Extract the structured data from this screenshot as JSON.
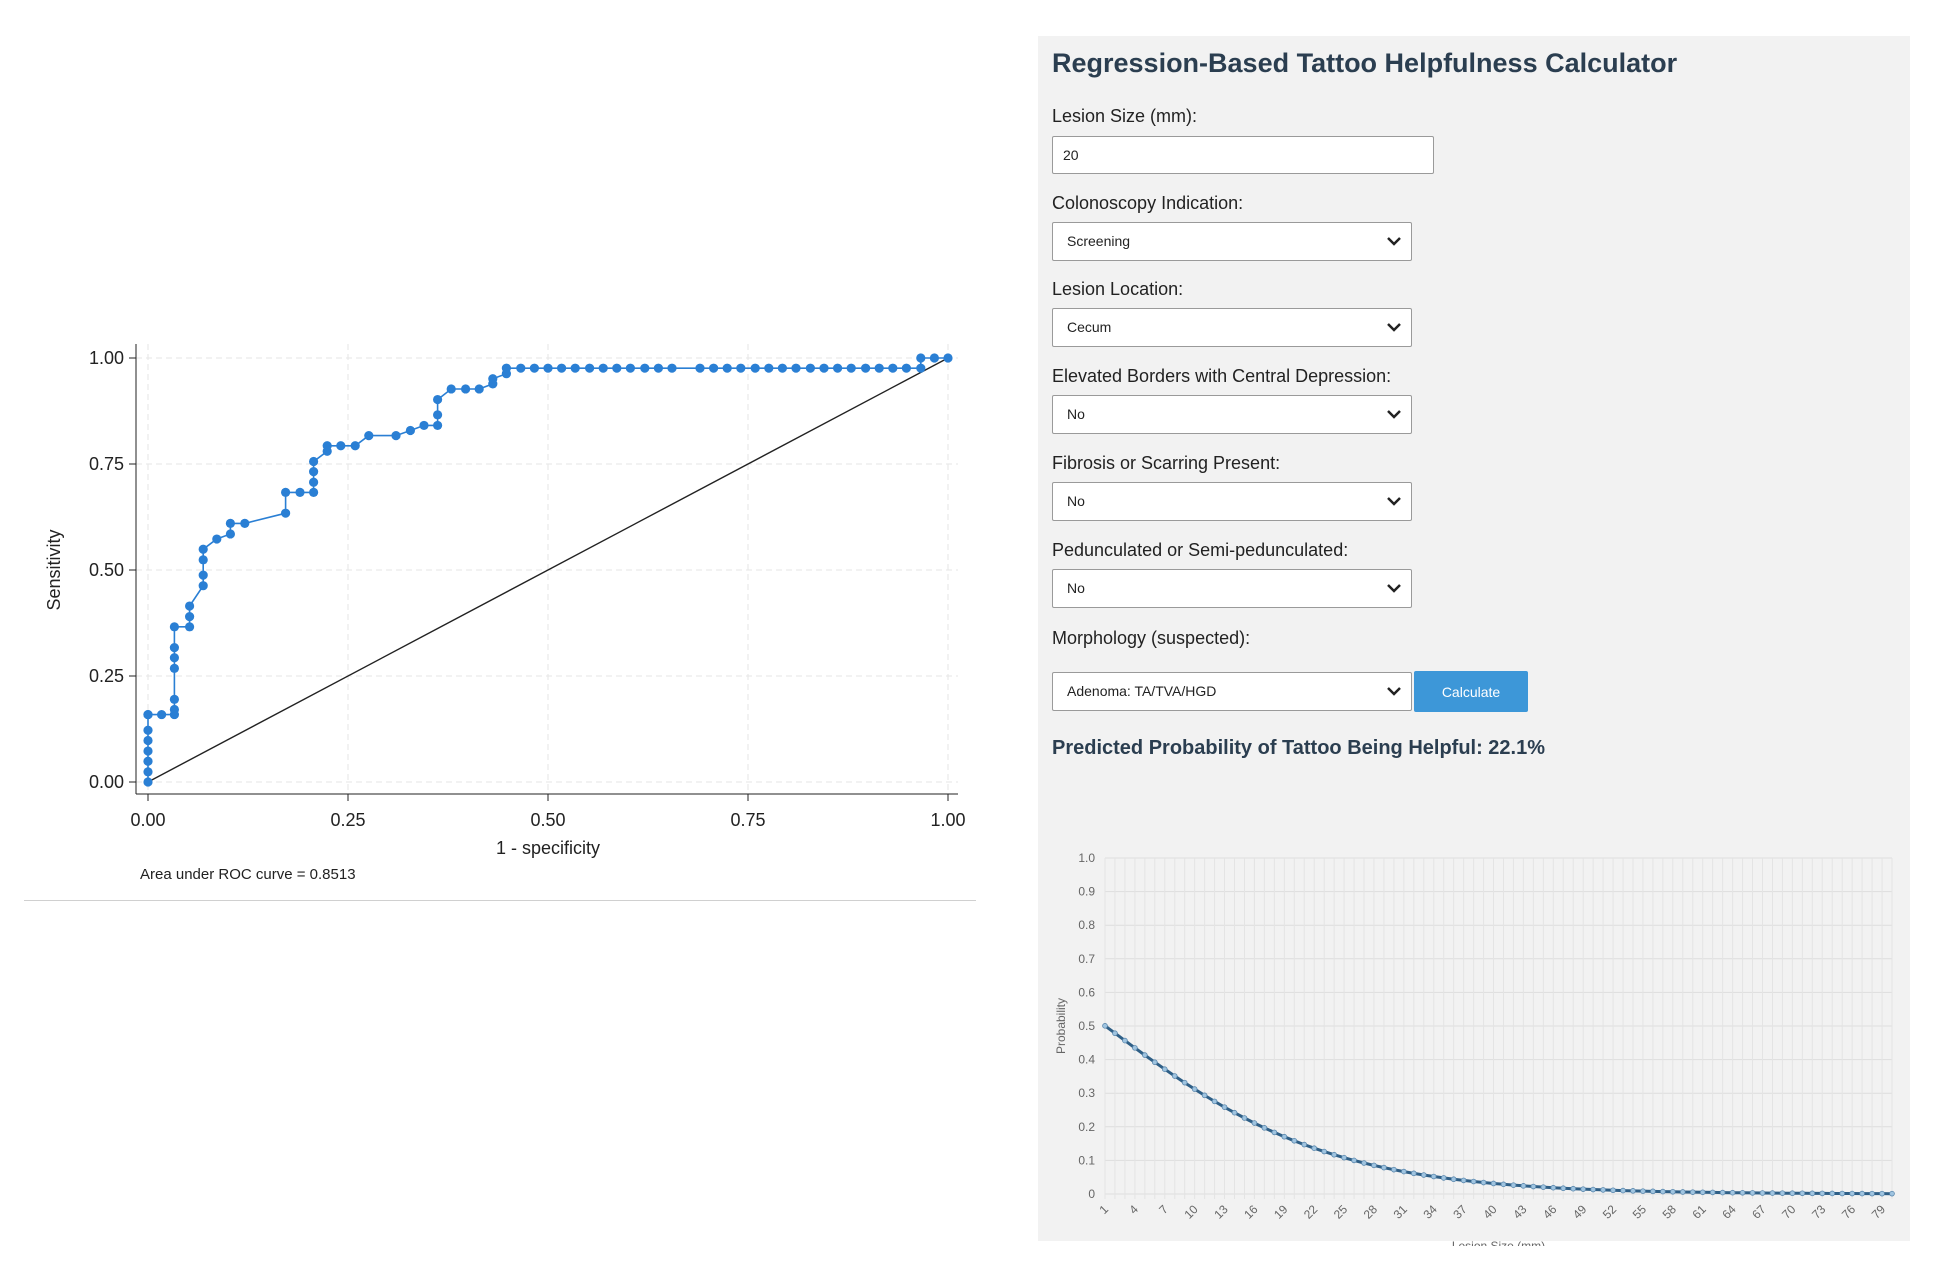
{
  "roc": {
    "note": "Area under ROC curve = 0.8513",
    "colors": {
      "curve": "#2a7fd4",
      "reference": "#222222",
      "grid": "#e6e6e6"
    }
  },
  "calculator": {
    "title": "Regression-Based Tattoo Helpfulness Calculator",
    "fields": [
      {
        "label": "Lesion Size (mm):",
        "type": "text",
        "value": "20"
      },
      {
        "label": "Colonoscopy Indication:",
        "type": "select",
        "value": "Screening"
      },
      {
        "label": "Lesion Location:",
        "type": "select",
        "value": "Cecum"
      },
      {
        "label": "Elevated Borders with Central Depression:",
        "type": "select",
        "value": "No"
      },
      {
        "label": "Fibrosis or Scarring Present:",
        "type": "select",
        "value": "No"
      },
      {
        "label": "Pedunculated or Semi-pedunculated:",
        "type": "select",
        "value": "No"
      },
      {
        "label": "Morphology (suspected):",
        "type": "select",
        "value": "Adenoma: TA/TVA/HGD"
      }
    ],
    "calculate_label": "Calculate",
    "result_label": "Predicted Probability of Tattoo Being Helpful: 22.1%",
    "colors": {
      "button": "#3d97d8",
      "title": "#2b3e50",
      "panel": "#f2f2f2"
    }
  },
  "chart_data": [
    {
      "type": "line",
      "xlabel": "1 - specificity",
      "ylabel": "Sensitivity",
      "xlim": [
        0,
        1
      ],
      "ylim": [
        0,
        1
      ],
      "x_ticks": [
        "0.00",
        "0.25",
        "0.50",
        "0.75",
        "1.00"
      ],
      "y_ticks": [
        "0.00",
        "0.25",
        "0.50",
        "0.75",
        "1.00"
      ],
      "grid": true,
      "series": [
        {
          "x": [
            0,
            0,
            0,
            0,
            0,
            0,
            0,
            0,
            0.017,
            0.033,
            0.033,
            0.033,
            0.033,
            0.033,
            0.033,
            0.033,
            0.052,
            0.052,
            0.052,
            0.069,
            0.069,
            0.069,
            0.069,
            0.086,
            0.103,
            0.103,
            0.121,
            0.172,
            0.172,
            0.19,
            0.207,
            0.207,
            0.207,
            0.207,
            0.224,
            0.224,
            0.241,
            0.259,
            0.276,
            0.31,
            0.328,
            0.345,
            0.362,
            0.362,
            0.362,
            0.379,
            0.397,
            0.414,
            0.431,
            0.431,
            0.448,
            0.448,
            0.466,
            0.483,
            0.5,
            0.517,
            0.534,
            0.552,
            0.569,
            0.586,
            0.603,
            0.621,
            0.638,
            0.655,
            0.69,
            0.707,
            0.724,
            0.741,
            0.759,
            0.776,
            0.793,
            0.81,
            0.828,
            0.845,
            0.862,
            0.879,
            0.897,
            0.914,
            0.931,
            0.948,
            0.966,
            0.966,
            0.983,
            1
          ],
          "y": [
            0,
            0.024,
            0.049,
            0.073,
            0.098,
            0.122,
            0.159,
            0.159,
            0.159,
            0.159,
            0.171,
            0.195,
            0.268,
            0.293,
            0.317,
            0.366,
            0.366,
            0.39,
            0.415,
            0.463,
            0.488,
            0.524,
            0.549,
            0.573,
            0.585,
            0.61,
            0.61,
            0.634,
            0.683,
            0.683,
            0.683,
            0.707,
            0.732,
            0.756,
            0.78,
            0.793,
            0.793,
            0.793,
            0.817,
            0.817,
            0.829,
            0.841,
            0.841,
            0.866,
            0.902,
            0.927,
            0.927,
            0.927,
            0.939,
            0.951,
            0.963,
            0.976,
            0.976,
            0.976,
            0.976,
            0.976,
            0.976,
            0.976,
            0.976,
            0.976,
            0.976,
            0.976,
            0.976,
            0.976,
            0.976,
            0.976,
            0.976,
            0.976,
            0.976,
            0.976,
            0.976,
            0.976,
            0.976,
            0.976,
            0.976,
            0.976,
            0.976,
            0.976,
            0.976,
            0.976,
            0.976,
            1,
            1,
            1
          ]
        }
      ],
      "reference_line": {
        "x": [
          0,
          1
        ],
        "y": [
          0,
          1
        ]
      }
    },
    {
      "type": "line",
      "xlabel": "Lesion Size (mm)",
      "ylabel": "Probability",
      "xlim": [
        1,
        80
      ],
      "ylim": [
        0,
        1
      ],
      "y_ticks": [
        "0",
        "0.1",
        "0.2",
        "0.3",
        "0.4",
        "0.5",
        "0.6",
        "0.7",
        "0.8",
        "0.9",
        "1.0"
      ],
      "x_ticks": [
        "1",
        "4",
        "7",
        "10",
        "13",
        "16",
        "19",
        "22",
        "25",
        "28",
        "31",
        "34",
        "37",
        "40",
        "43",
        "46",
        "49",
        "52",
        "55",
        "58",
        "61",
        "64",
        "67",
        "70",
        "73",
        "76",
        "79"
      ],
      "grid": true,
      "curve": {
        "type": "logistic",
        "intercept": 0.09,
        "slope_per_mm": -0.088,
        "x_start": 1,
        "x_end": 80,
        "x_step": 1
      }
    }
  ]
}
